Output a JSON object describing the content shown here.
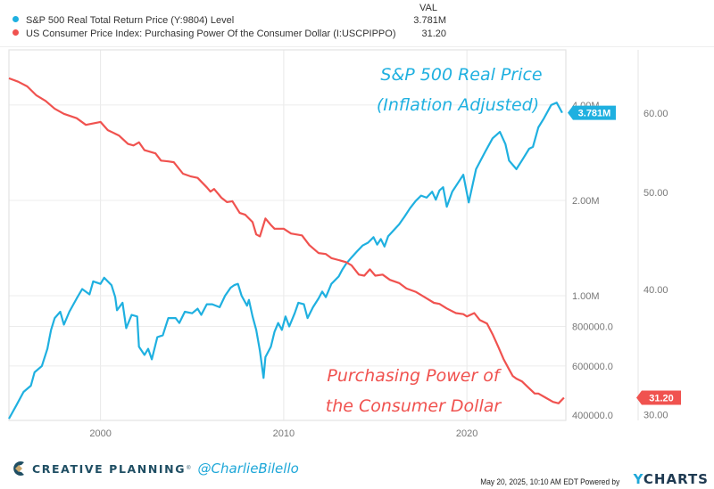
{
  "legend": {
    "header": "VAL",
    "items": [
      {
        "label": "S&P 500 Real Total Return Price (Y:9804) Level",
        "value": "3.781M",
        "color": "#1fb0e0"
      },
      {
        "label": "US Consumer Price Index: Purchasing Power Of the Consumer Dollar (I:USCPIPPO)",
        "value": "31.20",
        "color": "#f0524f"
      }
    ]
  },
  "chart_data": {
    "type": "line",
    "title": "",
    "xlabel": "",
    "x_ticks": [
      "2000",
      "2010",
      "2020"
    ],
    "x_range": [
      1995.0,
      2025.4
    ],
    "grid": true,
    "legend_position": "top-left",
    "axes": {
      "left": {
        "scale": "log",
        "range": [
          400000,
          4300000
        ],
        "ticks": [
          {
            "v": 400000,
            "label": "400000.0"
          },
          {
            "v": 600000,
            "label": "600000.0"
          },
          {
            "v": 800000,
            "label": "800000.0"
          },
          {
            "v": 1000000,
            "label": "1.00M"
          },
          {
            "v": 2000000,
            "label": "2.00M"
          },
          {
            "v": 4000000,
            "label": "4.00M"
          }
        ]
      },
      "right": {
        "scale": "log",
        "range": [
          29.5,
          67
        ],
        "ticks": [
          {
            "v": 30,
            "label": "30.00"
          },
          {
            "v": 40,
            "label": "40.00"
          },
          {
            "v": 50,
            "label": "50.00"
          },
          {
            "v": 60,
            "label": "60.00"
          }
        ]
      }
    },
    "series": [
      {
        "name": "S&P 500 Real Total Return Price (Y:9804) Level",
        "axis": "left",
        "color": "#1fb0e0",
        "last_label": "3.781M",
        "points": [
          [
            1995.0,
            409000
          ],
          [
            1995.4,
            450000
          ],
          [
            1995.8,
            497000
          ],
          [
            1996.2,
            520000
          ],
          [
            1996.4,
            573000
          ],
          [
            1996.8,
            600000
          ],
          [
            1997.1,
            680000
          ],
          [
            1997.2,
            730000
          ],
          [
            1997.3,
            780000
          ],
          [
            1997.5,
            850000
          ],
          [
            1997.8,
            890000
          ],
          [
            1998.0,
            810000
          ],
          [
            1998.3,
            890000
          ],
          [
            1998.7,
            980000
          ],
          [
            1999.0,
            1050000
          ],
          [
            1999.4,
            1010000
          ],
          [
            1999.6,
            1110000
          ],
          [
            2000.0,
            1090000
          ],
          [
            2000.2,
            1140000
          ],
          [
            2000.6,
            1080000
          ],
          [
            2000.8,
            990000
          ],
          [
            2000.9,
            900000
          ],
          [
            2001.2,
            950000
          ],
          [
            2001.4,
            790000
          ],
          [
            2001.7,
            870000
          ],
          [
            2002.0,
            860000
          ],
          [
            2002.1,
            690000
          ],
          [
            2002.4,
            650000
          ],
          [
            2002.6,
            680000
          ],
          [
            2002.8,
            630000
          ],
          [
            2003.1,
            740000
          ],
          [
            2003.4,
            750000
          ],
          [
            2003.7,
            850000
          ],
          [
            2004.1,
            850000
          ],
          [
            2004.3,
            820000
          ],
          [
            2004.6,
            890000
          ],
          [
            2005.0,
            880000
          ],
          [
            2005.3,
            910000
          ],
          [
            2005.5,
            870000
          ],
          [
            2005.8,
            940000
          ],
          [
            2006.1,
            940000
          ],
          [
            2006.5,
            920000
          ],
          [
            2006.8,
            1000000
          ],
          [
            2007.1,
            1060000
          ],
          [
            2007.3,
            1080000
          ],
          [
            2007.5,
            1090000
          ],
          [
            2007.7,
            1000000
          ],
          [
            2008.0,
            930000
          ],
          [
            2008.1,
            970000
          ],
          [
            2008.3,
            860000
          ],
          [
            2008.5,
            780000
          ],
          [
            2008.7,
            670000
          ],
          [
            2008.9,
            550000
          ],
          [
            2009.0,
            640000
          ],
          [
            2009.3,
            690000
          ],
          [
            2009.5,
            770000
          ],
          [
            2009.7,
            820000
          ],
          [
            2009.9,
            780000
          ],
          [
            2010.1,
            860000
          ],
          [
            2010.3,
            800000
          ],
          [
            2010.6,
            880000
          ],
          [
            2010.8,
            950000
          ],
          [
            2011.1,
            940000
          ],
          [
            2011.3,
            850000
          ],
          [
            2011.6,
            920000
          ],
          [
            2011.9,
            980000
          ],
          [
            2012.1,
            1030000
          ],
          [
            2012.3,
            990000
          ],
          [
            2012.6,
            1090000
          ],
          [
            2013.0,
            1150000
          ],
          [
            2013.2,
            1210000
          ],
          [
            2013.4,
            1260000
          ],
          [
            2013.7,
            1320000
          ],
          [
            2014.0,
            1380000
          ],
          [
            2014.3,
            1440000
          ],
          [
            2014.6,
            1470000
          ],
          [
            2014.9,
            1530000
          ],
          [
            2015.1,
            1450000
          ],
          [
            2015.3,
            1510000
          ],
          [
            2015.5,
            1430000
          ],
          [
            2015.7,
            1540000
          ],
          [
            2016.0,
            1610000
          ],
          [
            2016.3,
            1680000
          ],
          [
            2016.6,
            1780000
          ],
          [
            2016.9,
            1890000
          ],
          [
            2017.2,
            1990000
          ],
          [
            2017.5,
            2070000
          ],
          [
            2017.8,
            2040000
          ],
          [
            2018.1,
            2130000
          ],
          [
            2018.3,
            2010000
          ],
          [
            2018.5,
            2150000
          ],
          [
            2018.7,
            2200000
          ],
          [
            2018.9,
            1910000
          ],
          [
            2019.2,
            2130000
          ],
          [
            2019.8,
            2410000
          ],
          [
            2020.1,
            1970000
          ],
          [
            2020.5,
            2510000
          ],
          [
            2021.0,
            2850000
          ],
          [
            2021.4,
            3140000
          ],
          [
            2021.8,
            3290000
          ],
          [
            2022.1,
            3010000
          ],
          [
            2022.3,
            2670000
          ],
          [
            2022.7,
            2510000
          ],
          [
            2023.0,
            2670000
          ],
          [
            2023.4,
            2910000
          ],
          [
            2023.6,
            2950000
          ],
          [
            2023.9,
            3400000
          ],
          [
            2024.2,
            3630000
          ],
          [
            2024.6,
            4000000
          ],
          [
            2024.9,
            4070000
          ],
          [
            2025.2,
            3781000
          ]
        ]
      },
      {
        "name": "US Consumer Price Index: Purchasing Power Of the Consumer Dollar (I:USCPIPPO)",
        "axis": "right",
        "color": "#f0524f",
        "last_label": "31.20",
        "points": [
          [
            1995.0,
            65.0
          ],
          [
            1995.5,
            64.5
          ],
          [
            1996.0,
            63.8
          ],
          [
            1996.5,
            62.5
          ],
          [
            1997.0,
            61.7
          ],
          [
            1997.5,
            60.6
          ],
          [
            1998.0,
            59.9
          ],
          [
            1998.7,
            59.3
          ],
          [
            1999.2,
            58.4
          ],
          [
            2000.0,
            58.8
          ],
          [
            2000.4,
            57.7
          ],
          [
            2001.0,
            57.0
          ],
          [
            2001.5,
            55.9
          ],
          [
            2001.8,
            55.7
          ],
          [
            2002.1,
            56.1
          ],
          [
            2002.4,
            55.1
          ],
          [
            2003.0,
            54.7
          ],
          [
            2003.3,
            53.8
          ],
          [
            2003.7,
            53.7
          ],
          [
            2004.0,
            53.6
          ],
          [
            2004.5,
            52.2
          ],
          [
            2004.9,
            51.9
          ],
          [
            2005.3,
            51.7
          ],
          [
            2005.8,
            50.6
          ],
          [
            2006.0,
            50.1
          ],
          [
            2006.2,
            50.4
          ],
          [
            2006.6,
            49.4
          ],
          [
            2006.9,
            48.9
          ],
          [
            2007.2,
            49.0
          ],
          [
            2007.6,
            47.7
          ],
          [
            2007.9,
            47.5
          ],
          [
            2008.3,
            46.7
          ],
          [
            2008.5,
            45.4
          ],
          [
            2008.7,
            45.2
          ],
          [
            2009.0,
            47.1
          ],
          [
            2009.3,
            46.4
          ],
          [
            2009.5,
            46.0
          ],
          [
            2010.0,
            46.0
          ],
          [
            2010.4,
            45.5
          ],
          [
            2011.0,
            45.3
          ],
          [
            2011.4,
            44.3
          ],
          [
            2011.9,
            43.5
          ],
          [
            2012.3,
            43.4
          ],
          [
            2012.6,
            43.0
          ],
          [
            2013.0,
            42.8
          ],
          [
            2013.4,
            42.6
          ],
          [
            2013.7,
            42.3
          ],
          [
            2014.1,
            41.4
          ],
          [
            2014.4,
            41.3
          ],
          [
            2014.7,
            41.9
          ],
          [
            2015.0,
            41.3
          ],
          [
            2015.4,
            41.4
          ],
          [
            2015.8,
            40.9
          ],
          [
            2016.3,
            40.6
          ],
          [
            2016.7,
            40.1
          ],
          [
            2017.2,
            39.8
          ],
          [
            2017.7,
            39.3
          ],
          [
            2018.2,
            38.8
          ],
          [
            2018.5,
            38.7
          ],
          [
            2018.9,
            38.3
          ],
          [
            2019.4,
            37.9
          ],
          [
            2019.8,
            37.8
          ],
          [
            2020.0,
            37.6
          ],
          [
            2020.4,
            37.9
          ],
          [
            2020.7,
            37.3
          ],
          [
            2021.1,
            37.0
          ],
          [
            2021.4,
            36.1
          ],
          [
            2021.7,
            35.1
          ],
          [
            2022.0,
            34.1
          ],
          [
            2022.3,
            33.3
          ],
          [
            2022.5,
            32.8
          ],
          [
            2022.7,
            32.6
          ],
          [
            2023.0,
            32.4
          ],
          [
            2023.3,
            32.0
          ],
          [
            2023.7,
            31.5
          ],
          [
            2023.9,
            31.5
          ],
          [
            2024.3,
            31.2
          ],
          [
            2024.7,
            30.9
          ],
          [
            2025.0,
            30.8
          ],
          [
            2025.3,
            31.2
          ]
        ]
      }
    ],
    "annotations": [
      {
        "text": [
          "S&P 500 Real Price",
          "(Inflation Adjusted)"
        ],
        "color": "#1fb0e0",
        "position": "top-right"
      },
      {
        "text": [
          "Purchasing Power of",
          "the Consumer Dollar"
        ],
        "color": "#f0524f",
        "position": "bottom-right"
      }
    ]
  },
  "footer": {
    "brand": "CREATIVE PLANNING",
    "registered": "®",
    "handle": "@CharlieBilello",
    "timestamp": "May 20, 2025, 10:10 AM EDT Powered by",
    "ycharts_y": "Y",
    "ycharts_rest": "CHARTS"
  }
}
